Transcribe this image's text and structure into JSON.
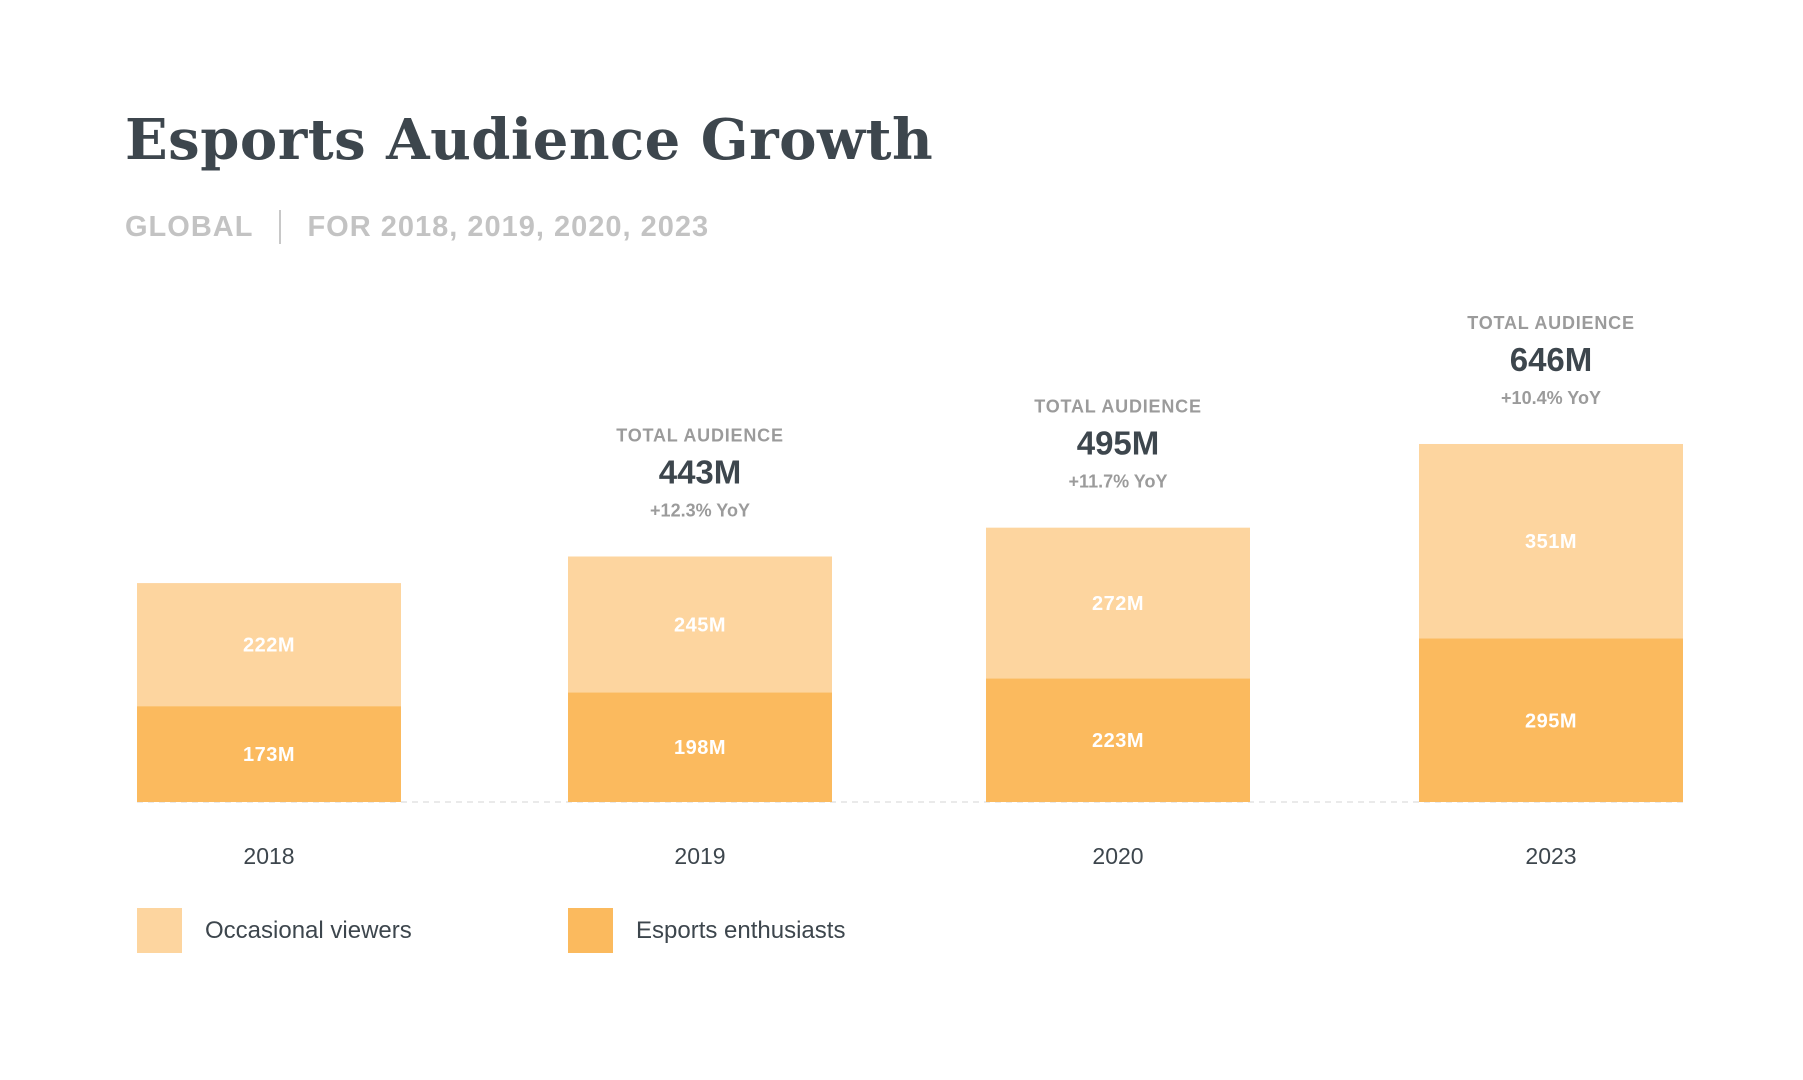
{
  "header": {
    "title": "Esports Audience Growth",
    "region": "GLOBAL",
    "years_caption": "FOR 2018, 2019, 2020, 2023"
  },
  "colors": {
    "occasional": "#fdd59f",
    "enthusiasts": "#fbba5e",
    "title": "#3d464d",
    "muted": "#9b9b9b",
    "segment_label": "#ffffff",
    "baseline": "#e3e3e3"
  },
  "chart_data": {
    "type": "bar",
    "stacked": true,
    "title": "Esports Audience Growth",
    "subtitle": "GLOBAL | FOR 2018, 2019, 2020, 2023",
    "categories": [
      "2018",
      "2019",
      "2020",
      "2023"
    ],
    "series": [
      {
        "name": "Esports enthusiasts",
        "values": [
          173,
          198,
          223,
          295
        ],
        "labels": [
          "173M",
          "198M",
          "223M",
          "295M"
        ]
      },
      {
        "name": "Occasional viewers",
        "values": [
          222,
          245,
          272,
          351
        ],
        "labels": [
          "222M",
          "245M",
          "272M",
          "351M"
        ]
      }
    ],
    "totals": [
      null,
      {
        "caption": "TOTAL AUDIENCE",
        "value": "443M",
        "change": "+12.3% YoY"
      },
      {
        "caption": "TOTAL AUDIENCE",
        "value": "495M",
        "change": "+11.7% YoY"
      },
      {
        "caption": "TOTAL AUDIENCE",
        "value": "646M",
        "change": "+10.4% YoY"
      }
    ],
    "unit": "M",
    "xlabel": "",
    "ylabel": "",
    "ylim": [
      0,
      646
    ],
    "grid": false,
    "legend": {
      "position": "bottom-left",
      "entries": [
        "Occasional viewers",
        "Esports enthusiasts"
      ]
    }
  }
}
